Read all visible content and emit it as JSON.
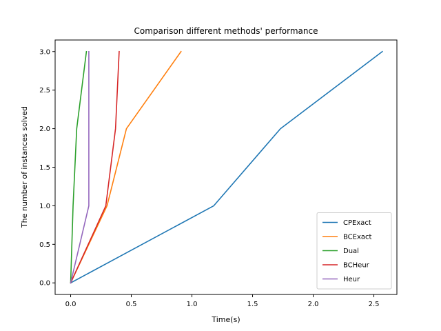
{
  "chart_data": {
    "type": "line",
    "title": "Comparison different methods' performance",
    "xlabel": "Time(s)",
    "ylabel": "The number of instances solved",
    "xlim": [
      -0.128,
      2.69
    ],
    "ylim": [
      -0.15,
      3.15
    ],
    "xticks": [
      0.0,
      0.5,
      1.0,
      1.5,
      2.0,
      2.5
    ],
    "xtick_labels": [
      "0.0",
      "0.5",
      "1.0",
      "1.5",
      "2.0",
      "2.5"
    ],
    "yticks": [
      0.0,
      0.5,
      1.0,
      1.5,
      2.0,
      2.5,
      3.0
    ],
    "ytick_labels": [
      "0.0",
      "0.5",
      "1.0",
      "1.5",
      "2.0",
      "2.5",
      "3.0"
    ],
    "grid": false,
    "legend_position": "lower-right",
    "series": [
      {
        "name": "CPExact",
        "color": "#1f77b4",
        "x": [
          0.0,
          1.18,
          1.73,
          2.57
        ],
        "y": [
          0,
          1,
          2,
          3
        ]
      },
      {
        "name": "BCExact",
        "color": "#ff7f0e",
        "x": [
          0.0,
          0.3,
          0.46,
          0.91
        ],
        "y": [
          0,
          1,
          2,
          3
        ]
      },
      {
        "name": "Dual",
        "color": "#2ca02c",
        "x": [
          0.0,
          0.02,
          0.05,
          0.13
        ],
        "y": [
          0,
          1,
          2,
          3
        ]
      },
      {
        "name": "BCHeur",
        "color": "#d62728",
        "x": [
          0.0,
          0.29,
          0.37,
          0.4
        ],
        "y": [
          0,
          1,
          2,
          3
        ]
      },
      {
        "name": "Heur",
        "color": "#9467bd",
        "x": [
          0.0,
          0.15,
          0.15,
          0.15
        ],
        "y": [
          0,
          1,
          2,
          3
        ]
      }
    ]
  }
}
